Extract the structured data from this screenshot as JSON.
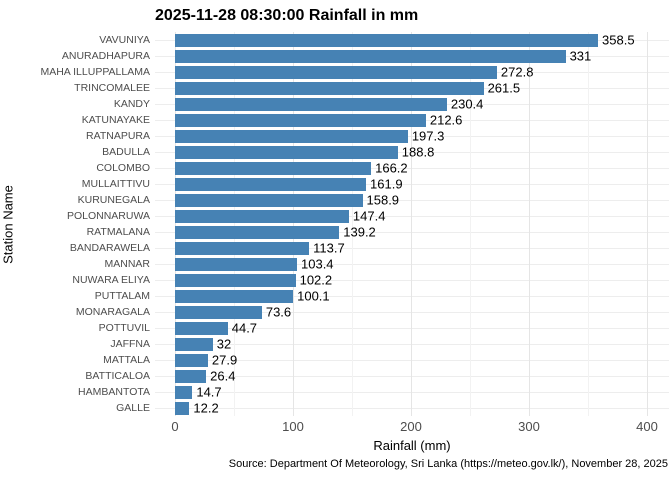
{
  "chart_data": {
    "type": "bar",
    "orientation": "horizontal",
    "title": "2025-11-28 08:30:00 Rainfall in mm",
    "xlabel": "Rainfall (mm)",
    "ylabel": "Station Name",
    "caption": "Source: Department Of Meteorology, Sri Lanka (https://meteo.gov.lk/), November 28, 2025",
    "categories": [
      "VAVUNIYA",
      "ANURADHAPURA",
      "MAHA ILLUPPALLAMA",
      "TRINCOMALEE",
      "KANDY",
      "KATUNAYAKE",
      "RATNAPURA",
      "BADULLA",
      "COLOMBO",
      "MULLAITTIVU",
      "KURUNEGALA",
      "POLONNARUWA",
      "RATMALANA",
      "BANDARAWELA",
      "MANNAR",
      "NUWARA ELIYA",
      "PUTTALAM",
      "MONARAGALA",
      "POTTUVIL",
      "JAFFNA",
      "MATTALA",
      "BATTICALOA",
      "HAMBANTOTA",
      "GALLE"
    ],
    "values": [
      358.5,
      331,
      272.8,
      261.5,
      230.4,
      212.6,
      197.3,
      188.8,
      166.2,
      161.9,
      158.9,
      147.4,
      139.2,
      113.7,
      103.4,
      102.2,
      100.1,
      73.6,
      44.7,
      32,
      27.9,
      26.4,
      14.7,
      12.2
    ],
    "x_ticks": [
      0,
      100,
      200,
      300,
      400
    ],
    "x_minor_ticks": [
      50,
      150,
      250,
      350
    ],
    "xlim": [
      0,
      400
    ],
    "bar_color": "#4682B4",
    "grid": true,
    "legend_position": "none",
    "value_labels_shown": true
  }
}
